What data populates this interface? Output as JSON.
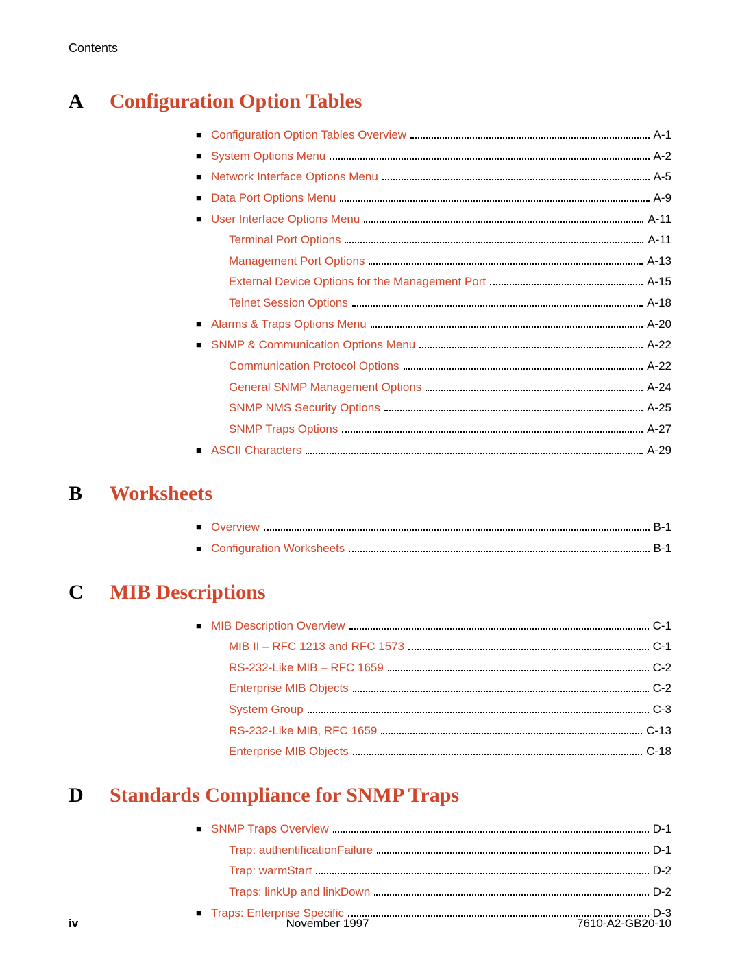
{
  "header": "Contents",
  "colors": {
    "accent": "#d1462a",
    "text": "#000000",
    "bg": "#ffffff"
  },
  "typography": {
    "section_font": "Times New Roman",
    "section_fontsize_pt": 22,
    "body_font": "Arial",
    "body_fontsize_pt": 12
  },
  "sections": [
    {
      "letter": "A",
      "title": "Configuration Option Tables",
      "items": [
        {
          "level": 0,
          "label": "Configuration Option Tables Overview",
          "page": "A-1"
        },
        {
          "level": 0,
          "label": "System Options Menu",
          "page": "A-2"
        },
        {
          "level": 0,
          "label": "Network Interface Options Menu",
          "page": "A-5"
        },
        {
          "level": 0,
          "label": "Data Port Options Menu",
          "page": "A-9"
        },
        {
          "level": 0,
          "label": "User Interface Options Menu",
          "page": "A-11"
        },
        {
          "level": 1,
          "label": "Terminal Port Options",
          "page": "A-11"
        },
        {
          "level": 1,
          "label": "Management Port Options",
          "page": "A-13"
        },
        {
          "level": 1,
          "label": "External Device Options for the Management Port",
          "page": "A-15"
        },
        {
          "level": 1,
          "label": "Telnet Session Options",
          "page": "A-18"
        },
        {
          "level": 0,
          "label": "Alarms & Traps Options Menu",
          "page": "A-20"
        },
        {
          "level": 0,
          "label": "SNMP & Communication Options Menu",
          "page": "A-22"
        },
        {
          "level": 1,
          "label": "Communication Protocol Options",
          "page": "A-22"
        },
        {
          "level": 1,
          "label": "General SNMP Management Options",
          "page": "A-24"
        },
        {
          "level": 1,
          "label": "SNMP NMS Security Options",
          "page": "A-25"
        },
        {
          "level": 1,
          "label": "SNMP Traps Options",
          "page": "A-27"
        },
        {
          "level": 0,
          "label": "ASCII Characters",
          "page": "A-29"
        }
      ]
    },
    {
      "letter": "B",
      "title": "Worksheets",
      "items": [
        {
          "level": 0,
          "label": "Overview",
          "page": "B-1"
        },
        {
          "level": 0,
          "label": "Configuration Worksheets",
          "page": "B-1"
        }
      ]
    },
    {
      "letter": "C",
      "title": "MIB Descriptions",
      "items": [
        {
          "level": 0,
          "label": "MIB Description Overview",
          "page": "C-1"
        },
        {
          "level": 1,
          "label": "MIB II – RFC 1213 and RFC 1573",
          "page": "C-1"
        },
        {
          "level": 1,
          "label": "RS-232-Like MIB – RFC 1659",
          "page": "C-2"
        },
        {
          "level": 1,
          "label": "Enterprise MIB Objects",
          "page": "C-2"
        },
        {
          "level": 1,
          "label": "System Group",
          "page": "C-3"
        },
        {
          "level": 1,
          "label": "RS-232-Like MIB, RFC 1659",
          "page": "C-13"
        },
        {
          "level": 1,
          "label": "Enterprise MIB Objects",
          "page": "C-18"
        }
      ]
    },
    {
      "letter": "D",
      "title": "Standards Compliance for SNMP Traps",
      "items": [
        {
          "level": 0,
          "label": "SNMP Traps Overview",
          "page": "D-1"
        },
        {
          "level": 1,
          "label": "Trap: authentificationFailure",
          "page": "D-1"
        },
        {
          "level": 1,
          "label": "Trap: warmStart",
          "page": "D-2"
        },
        {
          "level": 1,
          "label": "Traps: linkUp and linkDown",
          "page": "D-2"
        },
        {
          "level": 0,
          "label": "Traps: Enterprise Specific",
          "page": "D-3"
        }
      ]
    }
  ],
  "footer": {
    "page_number": "iv",
    "date": "November 1997",
    "doc_id": "7610-A2-GB20-10"
  }
}
